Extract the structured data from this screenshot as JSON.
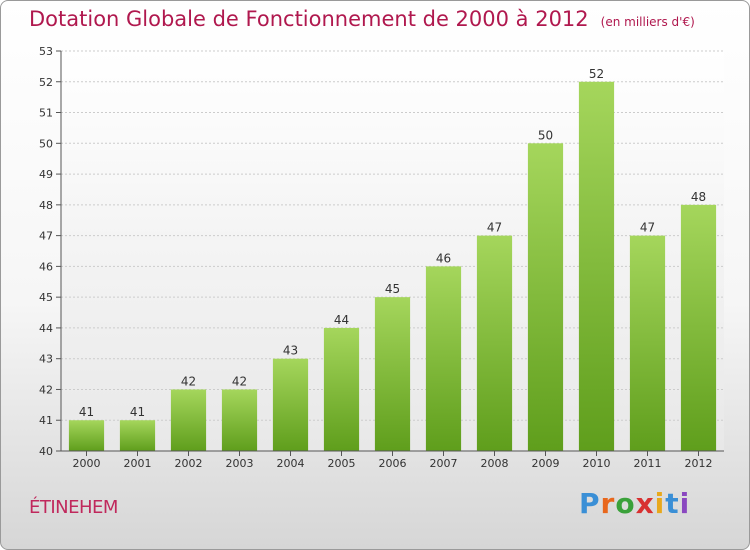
{
  "header": {
    "title": "Dotation Globale de Fonctionnement de 2000 à 2012",
    "unit": "(en milliers d'€)"
  },
  "commune": "ÉTINEHEM",
  "logo": {
    "letters": [
      "P",
      "r",
      "o",
      "x",
      "i",
      "t",
      "i"
    ],
    "colors": [
      "#3a8fd6",
      "#e8671c",
      "#3aa13a",
      "#d83030",
      "#e8a81c",
      "#3a8fd6",
      "#8a48c0"
    ]
  },
  "colors": {
    "bar_light": "#a5d65c",
    "bar_dark": "#5f9e1c",
    "grid": "#cccccc",
    "title": "#b0184e"
  },
  "chart_data": {
    "type": "bar",
    "title": "Dotation Globale de Fonctionnement de 2000 à 2012",
    "subtitle": "(en milliers d'€)",
    "categories": [
      "2000",
      "2001",
      "2002",
      "2003",
      "2004",
      "2005",
      "2006",
      "2007",
      "2008",
      "2009",
      "2010",
      "2011",
      "2012"
    ],
    "values": [
      41,
      41,
      42,
      42,
      43,
      44,
      45,
      46,
      47,
      50,
      52,
      47,
      48
    ],
    "ylim": [
      40,
      53
    ],
    "yticks": [
      40,
      41,
      42,
      43,
      44,
      45,
      46,
      47,
      48,
      49,
      50,
      51,
      52,
      53
    ],
    "grid": true,
    "xlabel": "",
    "ylabel": ""
  }
}
